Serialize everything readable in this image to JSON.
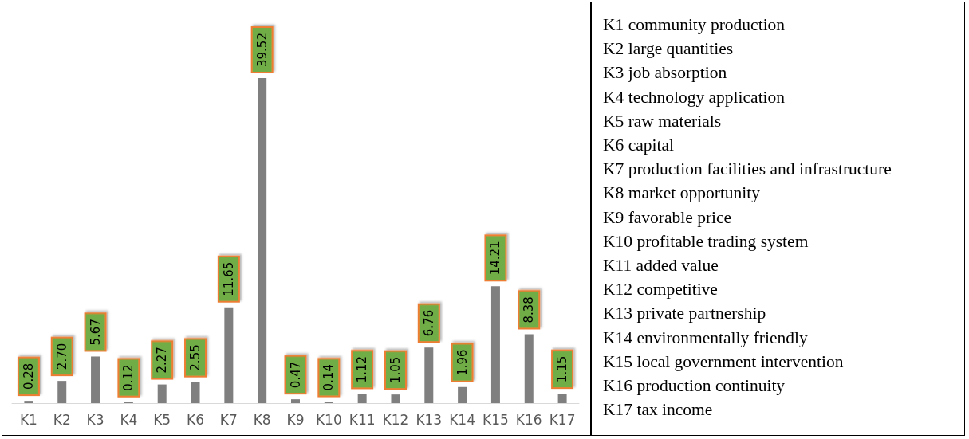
{
  "chart_data": {
    "type": "bar",
    "categories": [
      "K1",
      "K2",
      "K3",
      "K4",
      "K5",
      "K6",
      "K7",
      "K8",
      "K9",
      "K10",
      "K11",
      "K12",
      "K13",
      "K14",
      "K15",
      "K16",
      "K17"
    ],
    "values": [
      0.28,
      2.7,
      5.67,
      0.12,
      2.27,
      2.55,
      11.65,
      39.52,
      0.47,
      0.14,
      1.12,
      1.05,
      6.76,
      1.96,
      14.21,
      8.38,
      1.15
    ],
    "value_labels": [
      "0.28",
      "2.70",
      "5.67",
      "0.12",
      "2.27",
      "2.55",
      "11.65",
      "39.52",
      "0.47",
      "0.14",
      "1.12",
      "1.05",
      "6.76",
      "1.96",
      "14.21",
      "8.38",
      "1.15"
    ],
    "color": "#7f7f7f",
    "tick_labels": "x",
    "annotations": [
      "K1 community production",
      "K2 large quantities",
      "K3 job absorption",
      "K4 technology application",
      "K5 raw materials",
      "K6 capital",
      "K7 production facilities and infrastructure",
      "K8 market opportunity",
      "K9 favorable price",
      "K10 profitable trading system",
      "K11 added value",
      "K12 competitive",
      "K13 private partnership",
      "K14 environmentally friendly",
      "K15 local government intervention",
      "K16 production continuity",
      "K17 tax income"
    ]
  }
}
